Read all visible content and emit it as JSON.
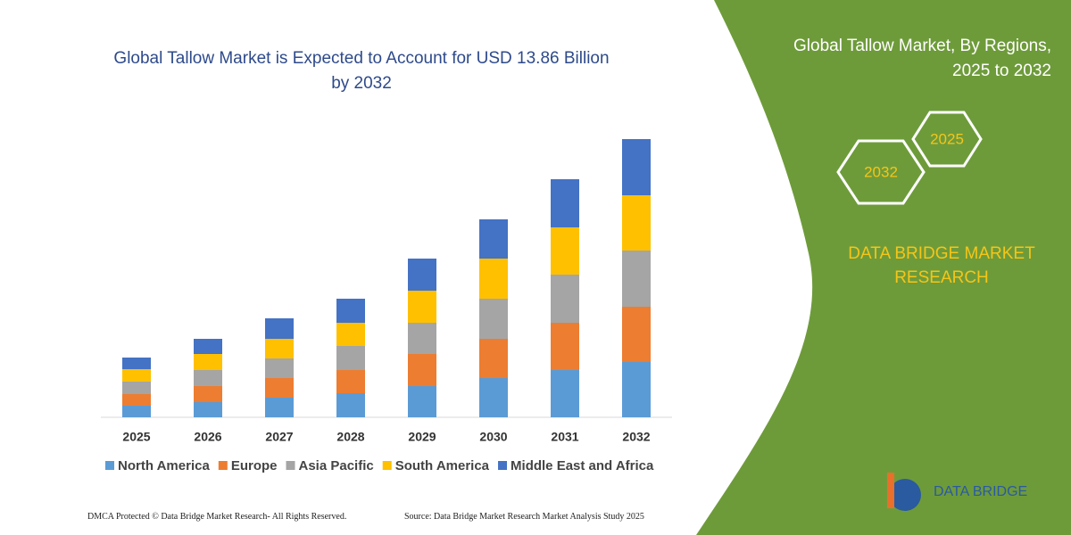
{
  "chart_data": {
    "type": "stacked_bar",
    "title": "Global Tallow Market is Expected to Account for USD 13.86 Billion by 2032",
    "categories": [
      "2025",
      "2026",
      "2027",
      "2028",
      "2029",
      "2030",
      "2031",
      "2032"
    ],
    "series": [
      {
        "name": "North America",
        "color": "#5b9bd5",
        "values": [
          13,
          17,
          22,
          27,
          35,
          44,
          53,
          62
        ]
      },
      {
        "name": "Europe",
        "color": "#ed7d31",
        "values": [
          13,
          18,
          22,
          26,
          36,
          44,
          53,
          62
        ]
      },
      {
        "name": "Asia Pacific",
        "color": "#a5a5a5",
        "values": [
          14,
          18,
          22,
          27,
          35,
          45,
          54,
          63
        ]
      },
      {
        "name": "South America",
        "color": "#ffc000",
        "values": [
          14,
          18,
          22,
          26,
          36,
          45,
          53,
          62
        ]
      },
      {
        "name": "Middle East and Africa",
        "color": "#4472c4",
        "values": [
          13,
          17,
          23,
          27,
          36,
          44,
          54,
          63
        ]
      }
    ],
    "legend": "bottom"
  },
  "panel": {
    "title": "Global Tallow Market, By Regions, 2025 to 2032",
    "hexagons": [
      "2025",
      "2032"
    ],
    "brand": "DATA BRIDGE MARKET RESEARCH"
  },
  "logo": {
    "name": "DATA BRIDGE"
  },
  "footer": {
    "left": "DMCA Protected © Data Bridge Market Research-  All Rights Reserved.",
    "right": "Source: Data Bridge Market Research  Market Analysis Study 2025"
  }
}
